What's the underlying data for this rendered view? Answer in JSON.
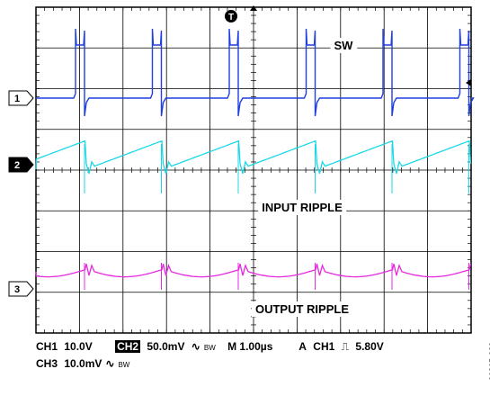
{
  "chart_data": {
    "type": "line",
    "title": "",
    "xlabel": "",
    "ylabel": "",
    "grid": true,
    "divisions": {
      "x": 10,
      "y": 8
    },
    "channels": [
      {
        "id": "1",
        "name": "SW",
        "scale": "10.0V",
        "color": "#1f3fe0",
        "marker_style": "outline"
      },
      {
        "id": "2",
        "name": "INPUT RIPPLE",
        "scale": "50.0mV",
        "color": "#19d8e6",
        "marker_style": "filled"
      },
      {
        "id": "3",
        "name": "OUTPUT RIPPLE",
        "scale": "10.0mV",
        "color": "#e629e0",
        "marker_style": "outline"
      }
    ],
    "trigger": {
      "marker": "T",
      "channel": "CH1",
      "level": "5.80V"
    },
    "timebase": "1.00µs"
  },
  "labels": {
    "sw": "SW",
    "input_ripple": "INPUT RIPPLE",
    "output_ripple": "OUTPUT RIPPLE",
    "trigger_marker": "T",
    "ch1_marker": "1",
    "ch2_marker": "2",
    "ch3_marker": "3"
  },
  "footer": {
    "ch1_label": "CH1",
    "ch1_scale": "10.0V",
    "ch2_label": "CH2",
    "ch2_scale": "50.0mV",
    "bw_symbol": "∿",
    "bw_text": "BW",
    "timebase_label": "M 1.00µs",
    "trig_mode": "A",
    "trig_channel": "CH1",
    "trig_edge": "⎍",
    "trig_level": "5.80V",
    "ch3_label": "CH3",
    "ch3_scale": "10.0mV"
  },
  "figure_id": "06865-020"
}
